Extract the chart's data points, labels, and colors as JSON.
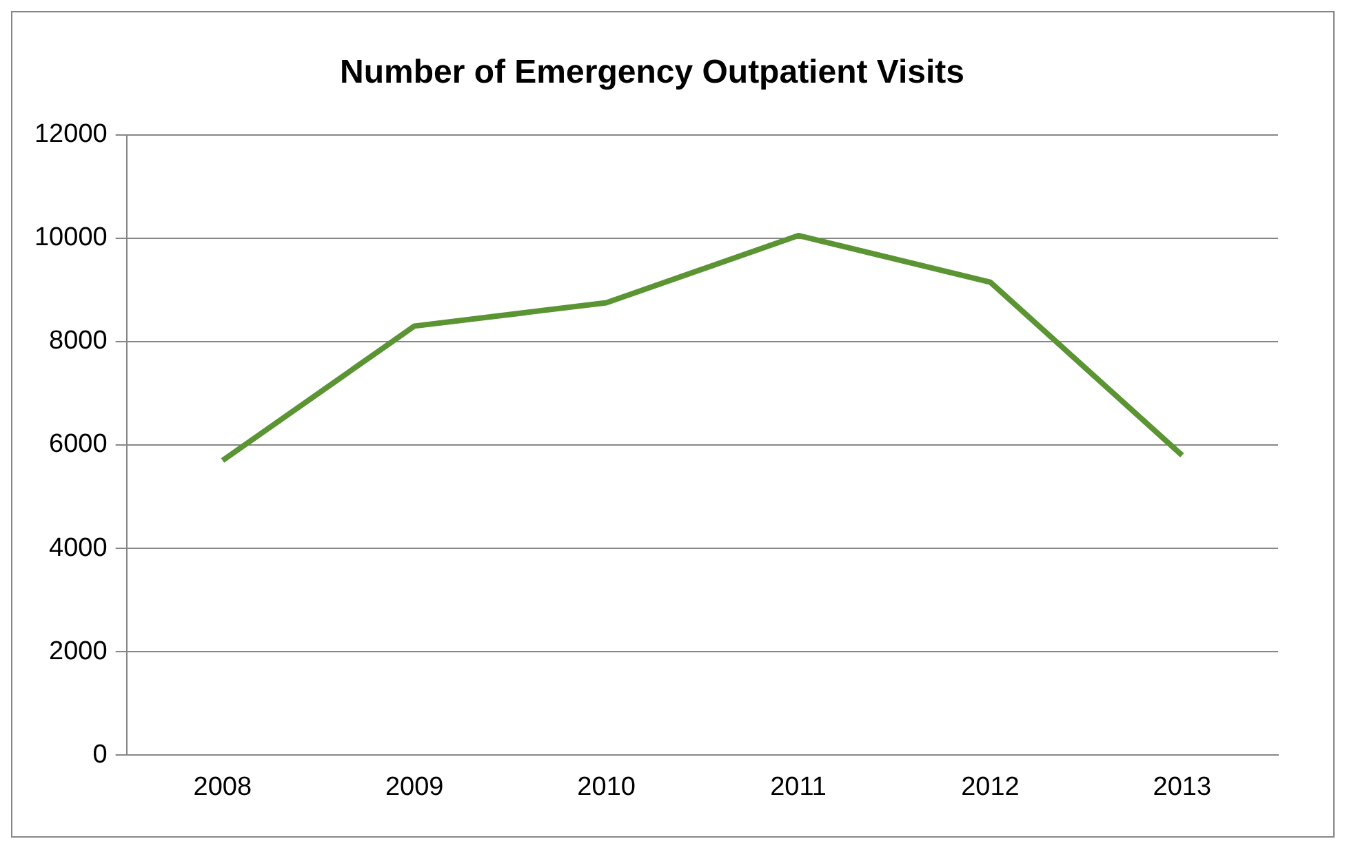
{
  "chart_data": {
    "type": "line",
    "title": "Number of Emergency Outpatient Visits",
    "categories": [
      "2008",
      "2009",
      "2010",
      "2011",
      "2012",
      "2013"
    ],
    "series": [
      {
        "color": "#5b9433",
        "values": [
          5700,
          8300,
          8750,
          10050,
          9150,
          5800
        ]
      }
    ],
    "ylim": [
      0,
      12000
    ],
    "yticks": [
      0,
      2000,
      4000,
      6000,
      8000,
      10000,
      12000
    ],
    "grid": "y",
    "legend": false,
    "marker": "none",
    "line_style": "solid"
  }
}
